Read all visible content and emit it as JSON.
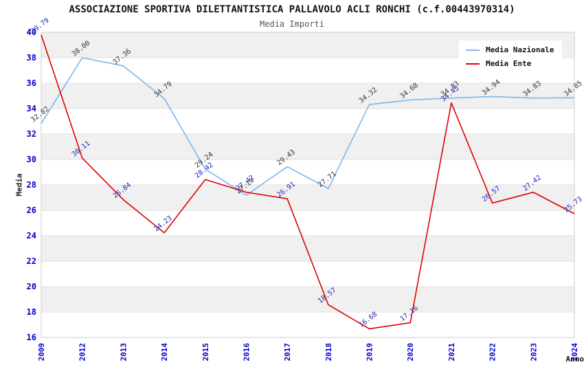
{
  "chart_data": {
    "type": "line",
    "title": "ASSOCIAZIONE SPORTIVA DILETTANTISTICA PALLAVOLO ACLI RONCHI (c.f.00443970314)",
    "subtitle": "Media Importi",
    "xlabel": "Anno",
    "ylabel": "Media",
    "categories": [
      "2009",
      "2012",
      "2013",
      "2014",
      "2015",
      "2016",
      "2017",
      "2018",
      "2019",
      "2020",
      "2021",
      "2022",
      "2023",
      "2024"
    ],
    "ylim": [
      16,
      40
    ],
    "ytick_step": 2,
    "grid": "horizontal-bands-alternating",
    "legend_position": "top-right",
    "series": [
      {
        "name": "Media Nazionale",
        "color": "#7cb5ec",
        "label_color": "#333333",
        "values": [
          32.82,
          38.0,
          37.36,
          34.79,
          29.24,
          27.19,
          29.43,
          27.71,
          34.32,
          34.68,
          34.83,
          34.94,
          34.83,
          34.85
        ]
      },
      {
        "name": "Media Ente",
        "color": "#dd0000",
        "label_color": "#2525b5",
        "values": [
          39.79,
          30.11,
          26.84,
          24.23,
          28.42,
          27.42,
          26.91,
          18.57,
          16.68,
          17.16,
          34.45,
          26.57,
          27.42,
          25.73
        ]
      }
    ],
    "style": {
      "axis_tick_color": "#0000cc",
      "band_fill": "#f0f0f0",
      "grid_line": "#e2e2e2",
      "plot_border": "#cccccc"
    }
  }
}
